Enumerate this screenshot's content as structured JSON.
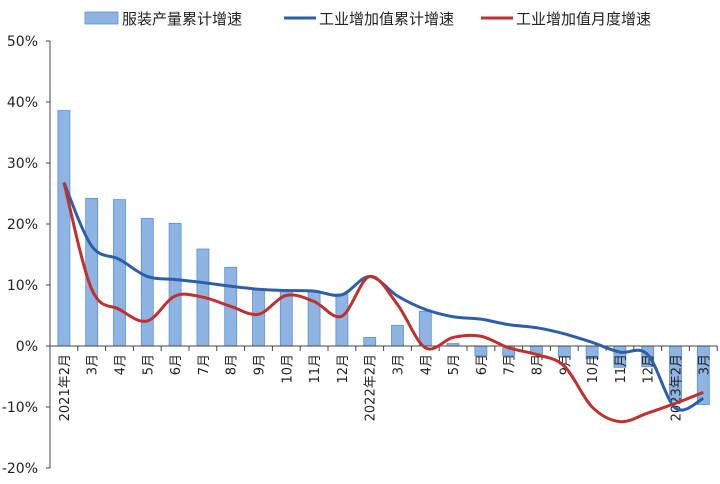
{
  "chart_data": {
    "type": "bar+line",
    "categories": [
      "2021年2月",
      "3月",
      "4月",
      "5月",
      "6月",
      "7月",
      "8月",
      "9月",
      "10月",
      "11月",
      "12月",
      "2022年2月",
      "3月",
      "4月",
      "5月",
      "6月",
      "7月",
      "8月",
      "9月",
      "10月",
      "11月",
      "12月",
      "2023年2月",
      "3月"
    ],
    "series": [
      {
        "name": "服装产量累计增速",
        "type": "bar",
        "color": "#8DB4E2",
        "values": [
          38.6,
          24.2,
          24.0,
          20.9,
          20.1,
          15.9,
          12.9,
          9.4,
          9.2,
          8.9,
          8.5,
          1.4,
          3.4,
          5.7,
          0.4,
          -1.6,
          -1.6,
          -1.3,
          -1.8,
          -2.1,
          -3.5,
          -3.4,
          -9.0,
          -9.6
        ]
      },
      {
        "name": "工业增加值累计增速",
        "type": "line",
        "color": "#2E5EAA",
        "values": [
          26.8,
          16.4,
          14.2,
          11.4,
          10.9,
          10.4,
          9.8,
          9.3,
          9.1,
          9.0,
          8.4,
          11.4,
          8.2,
          6.0,
          4.8,
          4.4,
          3.5,
          3.0,
          2.0,
          0.6,
          -1.0,
          -1.4,
          -10.2,
          -8.6
        ]
      },
      {
        "name": "工业增加值月度增速",
        "type": "line",
        "color": "#C0302E",
        "values": [
          26.8,
          9.3,
          6.0,
          4.1,
          8.2,
          8.0,
          6.5,
          5.2,
          8.3,
          7.3,
          4.9,
          11.4,
          6.8,
          -0.3,
          1.4,
          1.6,
          -0.3,
          -1.4,
          -3.3,
          -10.0,
          -12.4,
          -11.0,
          -9.4,
          -7.6
        ]
      }
    ],
    "ylim": [
      -20,
      50
    ],
    "yticks": [
      "-20%",
      "-10%",
      "0%",
      "10%",
      "20%",
      "30%",
      "40%",
      "50%"
    ],
    "ytick_values": [
      -20,
      -10,
      0,
      10,
      20,
      30,
      40,
      50
    ],
    "legend": "top",
    "grid": false
  }
}
